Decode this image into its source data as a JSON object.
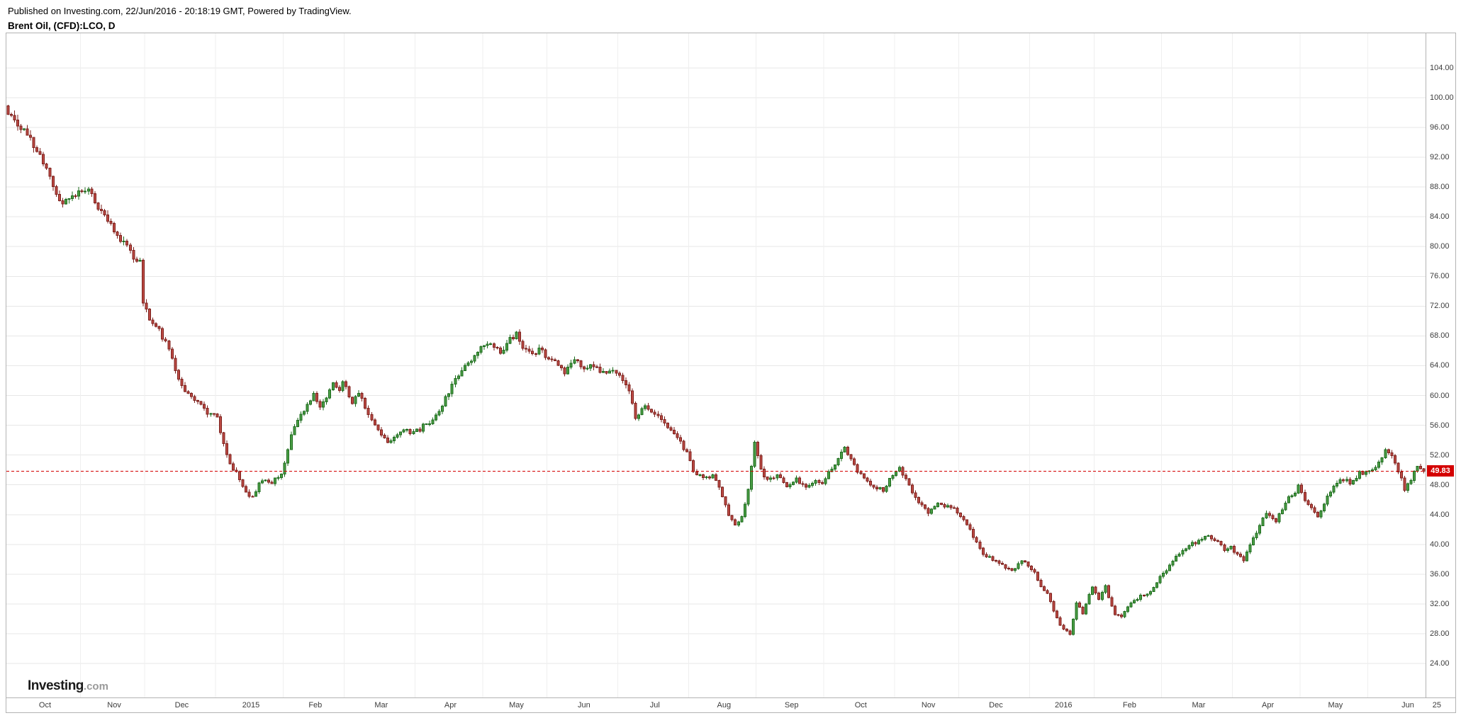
{
  "header": {
    "published_line": "Published on Investing.com, 22/Jun/2016 - 20:18:19 GMT, Powered by TradingView.",
    "symbol_line": "Brent Oil, (CFD):LCO, D"
  },
  "logo": {
    "main": "Investing",
    "suffix": ".com"
  },
  "last_price": {
    "value": "49.83"
  },
  "chart_data": {
    "type": "candlestick",
    "title": "Brent Oil, (CFD):LCO, D",
    "symbol": "Brent Oil (CFD):LCO",
    "interval": "D",
    "xlabel": "",
    "ylabel": "",
    "grid": true,
    "ylim": [
      19.44,
      108.65
    ],
    "y_ticks": [
      24,
      28,
      32,
      36,
      40,
      44,
      48,
      52,
      56,
      60,
      64,
      68,
      72,
      76,
      80,
      84,
      88,
      92,
      96,
      100,
      104
    ],
    "y_tick_format": "0.00",
    "total_candles": 441,
    "last_close": 49.83,
    "x_axis_labels": [
      {
        "label": "Oct",
        "index": 0
      },
      {
        "label": "Nov",
        "index": 23
      },
      {
        "label": "Dec",
        "index": 43
      },
      {
        "label": "2015",
        "index": 65
      },
      {
        "label": "Feb",
        "index": 86
      },
      {
        "label": "Mar",
        "index": 105
      },
      {
        "label": "Apr",
        "index": 127
      },
      {
        "label": "May",
        "index": 148
      },
      {
        "label": "Jun",
        "index": 168
      },
      {
        "label": "Jul",
        "index": 190
      },
      {
        "label": "Aug",
        "index": 212
      },
      {
        "label": "Sep",
        "index": 233
      },
      {
        "label": "Oct",
        "index": 254
      },
      {
        "label": "Nov",
        "index": 276
      },
      {
        "label": "Dec",
        "index": 296
      },
      {
        "label": "2016",
        "index": 318
      },
      {
        "label": "Feb",
        "index": 338
      },
      {
        "label": "Mar",
        "index": 359
      },
      {
        "label": "Apr",
        "index": 381
      },
      {
        "label": "May",
        "index": 402
      },
      {
        "label": "Jun",
        "index": 423
      },
      {
        "label": "25",
        "index": 447
      }
    ],
    "price_path_anchors": [
      [
        0,
        98.3
      ],
      [
        3,
        96.5
      ],
      [
        6,
        95.0
      ],
      [
        9,
        93.0
      ],
      [
        12,
        90.0
      ],
      [
        15,
        87.0
      ],
      [
        17,
        85.8
      ],
      [
        20,
        86.5
      ],
      [
        24,
        87.8
      ],
      [
        28,
        85.5
      ],
      [
        32,
        83.0
      ],
      [
        36,
        80.5
      ],
      [
        39,
        78.5
      ],
      [
        41,
        78.0
      ],
      [
        42,
        72.5
      ],
      [
        44,
        70.5
      ],
      [
        46,
        69.5
      ],
      [
        49,
        67.0
      ],
      [
        52,
        63.5
      ],
      [
        55,
        60.5
      ],
      [
        58,
        59.5
      ],
      [
        61,
        58.0
      ],
      [
        64,
        57.3
      ],
      [
        65,
        57.0
      ],
      [
        67,
        53.5
      ],
      [
        69,
        51.0
      ],
      [
        71,
        49.5
      ],
      [
        73,
        47.5
      ],
      [
        76,
        46.2
      ],
      [
        78,
        48.0
      ],
      [
        80,
        48.8
      ],
      [
        82,
        48.3
      ],
      [
        85,
        49.5
      ],
      [
        86,
        51.0
      ],
      [
        88,
        54.5
      ],
      [
        90,
        56.5
      ],
      [
        92,
        58.0
      ],
      [
        95,
        60.0
      ],
      [
        97,
        58.5
      ],
      [
        99,
        59.5
      ],
      [
        101,
        61.5
      ],
      [
        103,
        60.5
      ],
      [
        104,
        61.8
      ],
      [
        105,
        61.0
      ],
      [
        107,
        59.0
      ],
      [
        109,
        60.5
      ],
      [
        112,
        57.5
      ],
      [
        115,
        55.5
      ],
      [
        118,
        53.8
      ],
      [
        120,
        54.5
      ],
      [
        123,
        55.3
      ],
      [
        126,
        55.0
      ],
      [
        128,
        55.5
      ],
      [
        131,
        56.5
      ],
      [
        134,
        58.0
      ],
      [
        137,
        60.5
      ],
      [
        140,
        63.0
      ],
      [
        143,
        64.5
      ],
      [
        146,
        65.5
      ],
      [
        147,
        66.2
      ],
      [
        150,
        67.0
      ],
      [
        153,
        66.0
      ],
      [
        156,
        67.5
      ],
      [
        158,
        68.2
      ],
      [
        160,
        66.5
      ],
      [
        163,
        65.5
      ],
      [
        165,
        66.0
      ],
      [
        167,
        65.5
      ],
      [
        170,
        64.5
      ],
      [
        173,
        63.2
      ],
      [
        176,
        64.8
      ],
      [
        179,
        63.5
      ],
      [
        182,
        64.0
      ],
      [
        185,
        63.0
      ],
      [
        188,
        63.5
      ],
      [
        189,
        63.2
      ],
      [
        191,
        62.0
      ],
      [
        193,
        60.5
      ],
      [
        195,
        57.0
      ],
      [
        198,
        58.5
      ],
      [
        201,
        57.5
      ],
      [
        204,
        56.5
      ],
      [
        207,
        55.0
      ],
      [
        210,
        53.0
      ],
      [
        211,
        52.3
      ],
      [
        213,
        49.8
      ],
      [
        216,
        48.8
      ],
      [
        219,
        49.2
      ],
      [
        221,
        47.5
      ],
      [
        224,
        44.0
      ],
      [
        226,
        42.8
      ],
      [
        228,
        43.5
      ],
      [
        230,
        47.5
      ],
      [
        232,
        53.5
      ],
      [
        234,
        50.0
      ],
      [
        236,
        48.5
      ],
      [
        239,
        49.3
      ],
      [
        242,
        47.8
      ],
      [
        245,
        48.8
      ],
      [
        248,
        47.5
      ],
      [
        251,
        48.5
      ],
      [
        253,
        48.4
      ],
      [
        255,
        49.5
      ],
      [
        258,
        51.5
      ],
      [
        260,
        52.8
      ],
      [
        263,
        50.5
      ],
      [
        266,
        49.0
      ],
      [
        269,
        47.8
      ],
      [
        272,
        47.2
      ],
      [
        275,
        49.3
      ],
      [
        277,
        50.3
      ],
      [
        280,
        48.0
      ],
      [
        283,
        45.5
      ],
      [
        286,
        44.3
      ],
      [
        289,
        45.8
      ],
      [
        292,
        45.0
      ],
      [
        295,
        44.5
      ],
      [
        297,
        43.5
      ],
      [
        300,
        41.0
      ],
      [
        303,
        38.5
      ],
      [
        306,
        38.0
      ],
      [
        309,
        37.2
      ],
      [
        312,
        36.4
      ],
      [
        315,
        37.8
      ],
      [
        317,
        37.3
      ],
      [
        319,
        36.2
      ],
      [
        321,
        34.3
      ],
      [
        323,
        33.5
      ],
      [
        325,
        31.0
      ],
      [
        327,
        29.0
      ],
      [
        330,
        27.8
      ],
      [
        332,
        32.0
      ],
      [
        334,
        30.8
      ],
      [
        337,
        34.5
      ],
      [
        339,
        32.8
      ],
      [
        341,
        34.3
      ],
      [
        344,
        30.5
      ],
      [
        346,
        30.3
      ],
      [
        349,
        32.3
      ],
      [
        352,
        33.0
      ],
      [
        355,
        33.5
      ],
      [
        358,
        35.6
      ],
      [
        361,
        37.0
      ],
      [
        364,
        38.9
      ],
      [
        367,
        39.8
      ],
      [
        370,
        40.5
      ],
      [
        373,
        41.2
      ],
      [
        376,
        40.3
      ],
      [
        378,
        39.2
      ],
      [
        380,
        39.6
      ],
      [
        382,
        38.5
      ],
      [
        384,
        37.8
      ],
      [
        386,
        40.0
      ],
      [
        389,
        42.5
      ],
      [
        391,
        44.3
      ],
      [
        394,
        43.0
      ],
      [
        397,
        45.8
      ],
      [
        400,
        47.0
      ],
      [
        401,
        48.0
      ],
      [
        403,
        46.0
      ],
      [
        405,
        44.8
      ],
      [
        407,
        43.8
      ],
      [
        410,
        46.5
      ],
      [
        412,
        47.8
      ],
      [
        414,
        49.0
      ],
      [
        417,
        48.3
      ],
      [
        420,
        49.5
      ],
      [
        422,
        49.7
      ],
      [
        424,
        50.0
      ],
      [
        426,
        51.3
      ],
      [
        428,
        52.5
      ],
      [
        430,
        51.8
      ],
      [
        432,
        50.0
      ],
      [
        434,
        47.5
      ],
      [
        436,
        48.8
      ],
      [
        438,
        50.4
      ],
      [
        440,
        49.83
      ]
    ],
    "colors": {
      "up": "#4a9e45",
      "up_border": "#1d6b1d",
      "down": "#bc4a44",
      "down_border": "#7c201c",
      "grid_h": "#e7e7e7",
      "grid_v": "#efefef",
      "axis_text": "#3c3c3c",
      "last_price_line": "#d40000"
    }
  }
}
